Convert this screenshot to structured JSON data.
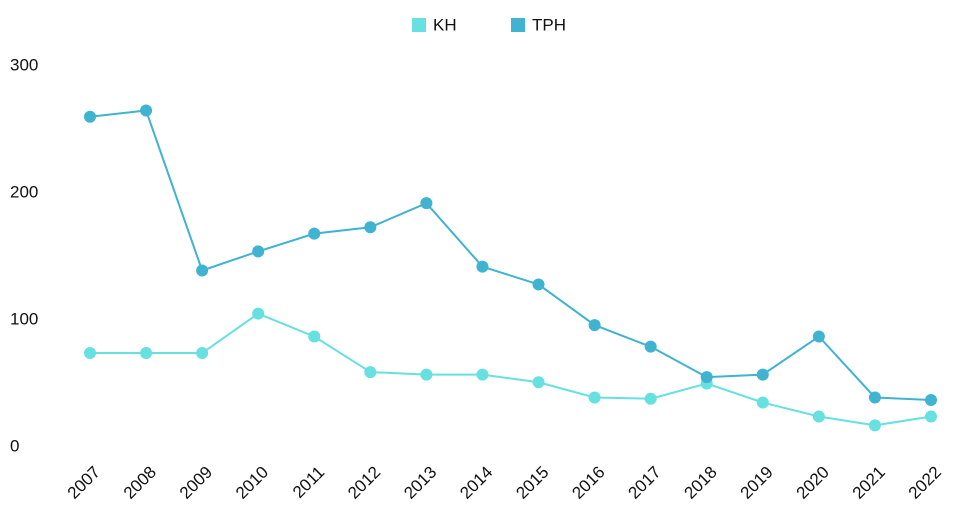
{
  "chart_data": {
    "type": "line",
    "categories": [
      "2007",
      "2008",
      "2009",
      "2010",
      "2011",
      "2012",
      "2013",
      "2014",
      "2015",
      "2016",
      "2017",
      "2018",
      "2019",
      "2020",
      "2021",
      "2022"
    ],
    "series": [
      {
        "name": "KH",
        "color": "#66e0e0",
        "values": [
          74,
          74,
          74,
          105,
          87,
          59,
          57,
          57,
          51,
          39,
          38,
          50,
          35,
          24,
          17,
          24
        ]
      },
      {
        "name": "TPH",
        "color": "#3fb3d0",
        "values": [
          260,
          265,
          139,
          154,
          168,
          173,
          192,
          142,
          128,
          96,
          79,
          55,
          57,
          87,
          39,
          37
        ]
      }
    ],
    "ylim": [
      0,
      300
    ],
    "yticks": [
      0,
      100,
      200,
      300
    ],
    "grid": false,
    "legend": "top"
  }
}
